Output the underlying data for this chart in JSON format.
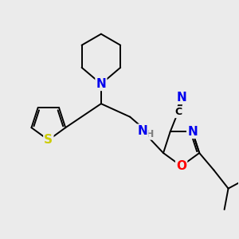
{
  "background_color": "#ebebeb",
  "bond_color": "#000000",
  "bond_width": 1.4,
  "atom_colors": {
    "N": "#0000ee",
    "S": "#cccc00",
    "O": "#ff0000",
    "C": "#000000",
    "H": "#808080"
  },
  "font_size": 10
}
